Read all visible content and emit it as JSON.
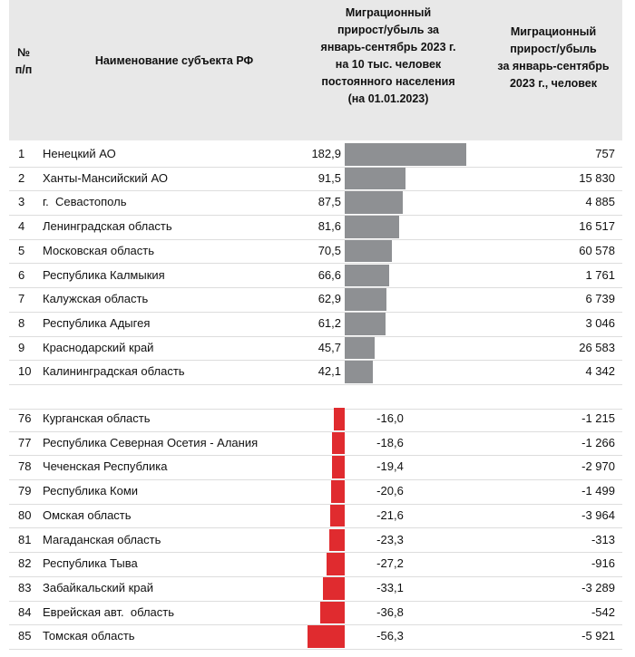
{
  "table": {
    "header": {
      "rank": [
        "№",
        "п/п"
      ],
      "name": [
        "Наименование субъекта РФ"
      ],
      "rate": [
        "Миграционный",
        "прирост/убыль за",
        "январь-сентябрь 2023 г.",
        "на 10 тыс. человек",
        "постоянного населения",
        "(на 01.01.2023)"
      ],
      "people": [
        "Миграционный",
        "прирост/убыль",
        "за январь-сентябрь",
        "2023 г., человек"
      ]
    },
    "groups": [
      [
        {
          "rank": 1,
          "name": "Ненецкий АО",
          "rate": 182.9,
          "rate_label": "182,9",
          "people": "757"
        },
        {
          "rank": 2,
          "name": "Ханты-Мансийский АО",
          "rate": 91.5,
          "rate_label": "91,5",
          "people": "15 830"
        },
        {
          "rank": 3,
          "name": "г.  Севастополь",
          "rate": 87.5,
          "rate_label": "87,5",
          "people": "4 885"
        },
        {
          "rank": 4,
          "name": "Ленинградская область",
          "rate": 81.6,
          "rate_label": "81,6",
          "people": "16 517"
        },
        {
          "rank": 5,
          "name": "Московская область",
          "rate": 70.5,
          "rate_label": "70,5",
          "people": "60 578"
        },
        {
          "rank": 6,
          "name": "Республика Калмыкия",
          "rate": 66.6,
          "rate_label": "66,6",
          "people": "1 761"
        },
        {
          "rank": 7,
          "name": "Калужская область",
          "rate": 62.9,
          "rate_label": "62,9",
          "people": "6 739"
        },
        {
          "rank": 8,
          "name": "Республика Адыгея",
          "rate": 61.2,
          "rate_label": "61,2",
          "people": "3 046"
        },
        {
          "rank": 9,
          "name": "Краснодарский край",
          "rate": 45.7,
          "rate_label": "45,7",
          "people": "26 583"
        },
        {
          "rank": 10,
          "name": "Калининградская область",
          "rate": 42.1,
          "rate_label": "42,1",
          "people": "4 342"
        }
      ],
      [
        {
          "rank": 76,
          "name": "Курганская область",
          "rate": -16.0,
          "rate_label": "-16,0",
          "people": "-1 215"
        },
        {
          "rank": 77,
          "name": "Республика Северная Осетия - Алания",
          "rate": -18.6,
          "rate_label": "-18,6",
          "people": "-1 266"
        },
        {
          "rank": 78,
          "name": "Чеченская Республика",
          "rate": -19.4,
          "rate_label": "-19,4",
          "people": "-2 970"
        },
        {
          "rank": 79,
          "name": "Республика Коми",
          "rate": -20.6,
          "rate_label": "-20,6",
          "people": "-1 499"
        },
        {
          "rank": 80,
          "name": "Омская область",
          "rate": -21.6,
          "rate_label": "-21,6",
          "people": "-3 964"
        },
        {
          "rank": 81,
          "name": "Магаданская область",
          "rate": -23.3,
          "rate_label": "-23,3",
          "people": "-313"
        },
        {
          "rank": 82,
          "name": "Республика Тыва",
          "rate": -27.2,
          "rate_label": "-27,2",
          "people": "-916"
        },
        {
          "rank": 83,
          "name": "Забайкальский край",
          "rate": -33.1,
          "rate_label": "-33,1",
          "people": "-3 289"
        },
        {
          "rank": 84,
          "name": "Еврейская авт.  область",
          "rate": -36.8,
          "rate_label": "-36,8",
          "people": "-542"
        },
        {
          "rank": 85,
          "name": "Томская область",
          "rate": -56.3,
          "rate_label": "-56,3",
          "people": "-5 921"
        }
      ]
    ],
    "colors": {
      "positive": "#8e9093",
      "negative": "#e02b2f"
    }
  }
}
